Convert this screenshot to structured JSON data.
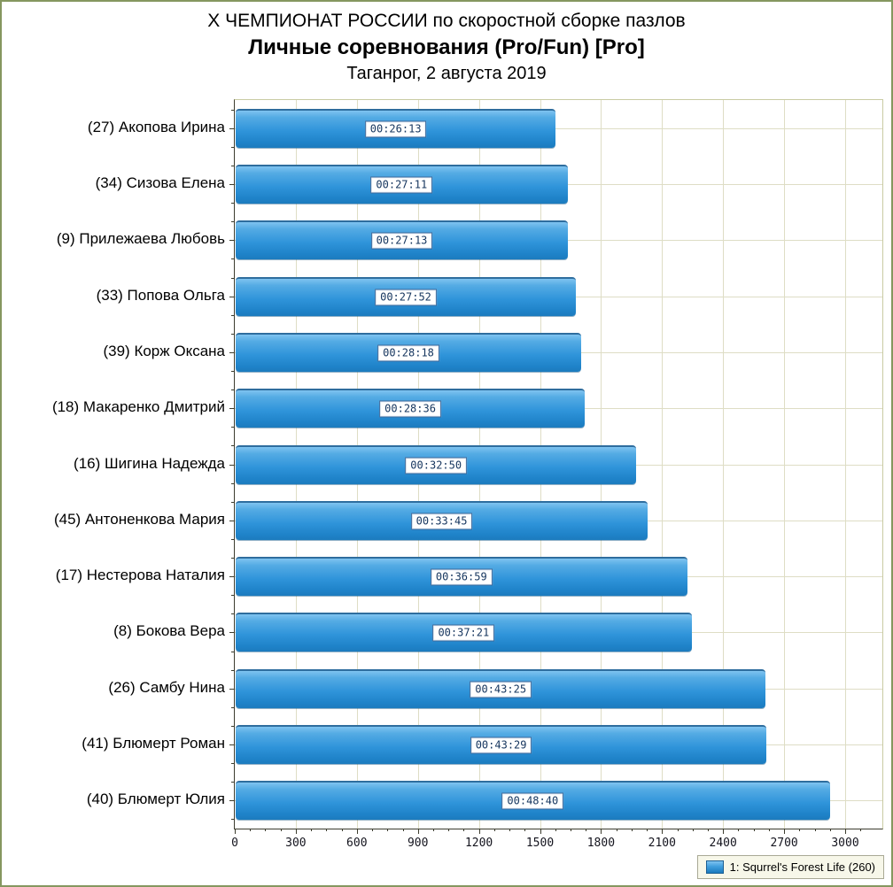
{
  "frame": {
    "border_color": "#85975f",
    "background": "#ffffff"
  },
  "title": {
    "line1": "X ЧЕМПИОНАТ РОССИИ по скоростной сборке пазлов",
    "line2": "Личные соревнования (Pro/Fun) [Pro]",
    "line3": "Таганрог, 2 августа 2019"
  },
  "chart_data": {
    "type": "bar",
    "orientation": "horizontal",
    "title": "X ЧЕМПИОНАТ РОССИИ по скоростной сборке пазлов",
    "subtitle": "Личные соревнования (Pro/Fun) [Pro]",
    "caption": "Таганрог, 2 августа 2019",
    "categories": [
      "(27) Акопова Ирина",
      "(34) Сизова Елена",
      "(9) Прилежаева Любовь",
      "(33) Попова Ольга",
      "(39) Корж Оксана",
      "(18) Макаренко Дмитрий",
      "(16) Шигина Надежда",
      "(45) Антоненкова Мария",
      "(17) Нестерова Наталия",
      "(8) Бокова Вера",
      "(26) Самбу Нина",
      "(41) Блюмерт Роман",
      "(40) Блюмерт Юлия"
    ],
    "bar_labels": [
      "00:26:13",
      "00:27:11",
      "00:27:13",
      "00:27:52",
      "00:28:18",
      "00:28:36",
      "00:32:50",
      "00:33:45",
      "00:36:59",
      "00:37:21",
      "00:43:25",
      "00:43:29",
      "00:48:40"
    ],
    "values_seconds": [
      1573,
      1631,
      1633,
      1672,
      1698,
      1716,
      1970,
      2025,
      2219,
      2241,
      2605,
      2609,
      2920
    ],
    "xlabel": "",
    "ylabel": "",
    "xaxis": {
      "min": 0,
      "max": 3183,
      "major_tick_step": 300,
      "minor_tick_step": 75,
      "tick_labels": [
        "0",
        "300",
        "600",
        "900",
        "1200",
        "1500",
        "1800",
        "2100",
        "2400",
        "2700",
        "3000"
      ]
    },
    "grid": {
      "vertical": true,
      "horizontal": true,
      "color": "#deddc5"
    },
    "bar_color": "#2f94da",
    "bar_gradient": [
      "#7fc3f0",
      "#1c7bbe"
    ],
    "legend_position": "bottom-right",
    "legend_entries": [
      {
        "label": "1: Squrrel's Forest Life (260)",
        "color": "#2f94da"
      }
    ]
  },
  "legend": {
    "label": "1: Squrrel's Forest Life (260)"
  }
}
